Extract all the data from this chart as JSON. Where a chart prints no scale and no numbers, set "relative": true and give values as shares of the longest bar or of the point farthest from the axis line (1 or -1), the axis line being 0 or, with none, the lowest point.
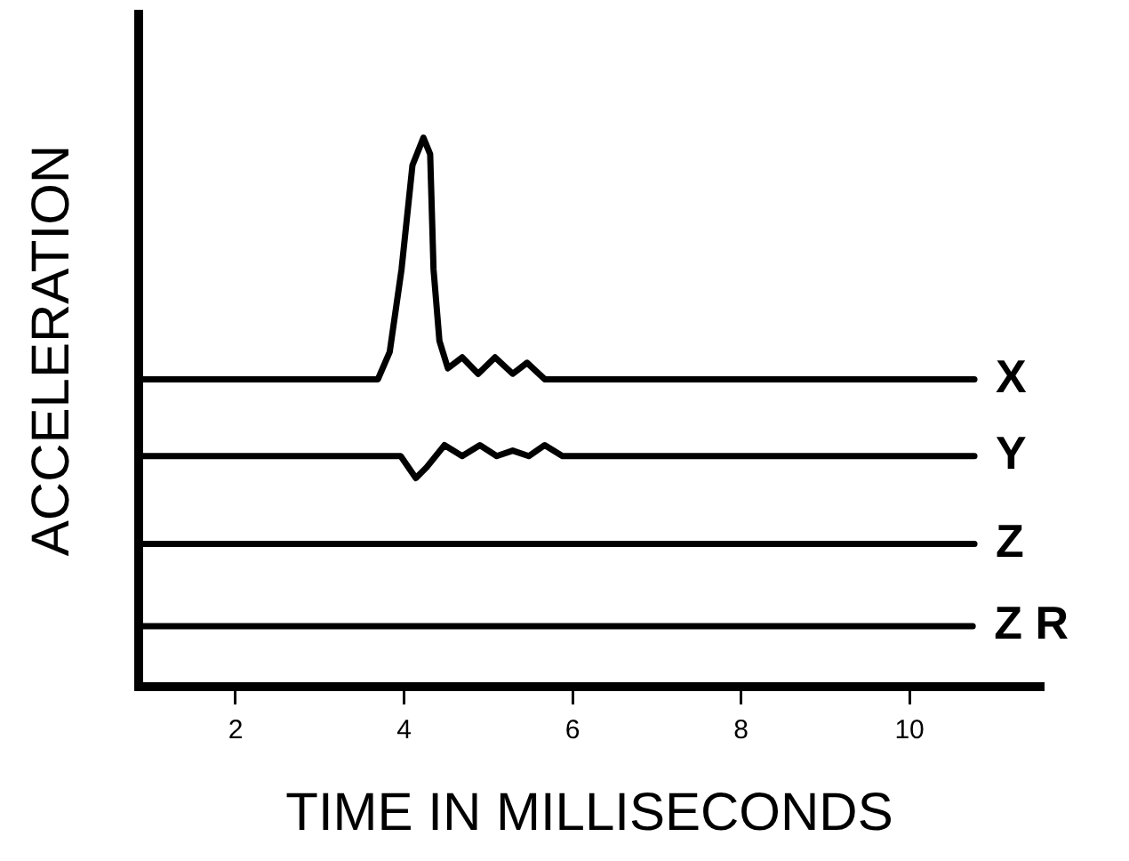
{
  "chart_data": {
    "type": "line",
    "xlabel": "TIME IN MILLISECONDS",
    "ylabel": "ACCELERATION",
    "relative": true,
    "legend": false,
    "marker": "none",
    "grid": false,
    "xlim": [
      0.85,
      11.55
    ],
    "xticks": [
      2,
      4,
      6,
      8,
      10
    ],
    "series": [
      {
        "name": "X",
        "color": "#000000",
        "x": [
          0.87,
          3.69,
          3.83,
          3.97,
          4.1,
          4.23,
          4.31,
          4.35,
          4.42,
          4.52,
          4.69,
          4.88,
          5.08,
          5.29,
          5.46,
          5.67,
          10.77
        ],
        "values": [
          0.56,
          0.56,
          0.61,
          0.76,
          0.95,
          1,
          0.97,
          0.76,
          0.63,
          0.58,
          0.6,
          0.57,
          0.6,
          0.57,
          0.59,
          0.56,
          0.56
        ]
      },
      {
        "name": "Y",
        "color": "#000000",
        "x": [
          0.87,
          3.96,
          4.14,
          4.27,
          4.48,
          4.69,
          4.9,
          5.1,
          5.29,
          5.48,
          5.67,
          5.88,
          10.77
        ],
        "values": [
          0.42,
          0.42,
          0.38,
          0.4,
          0.44,
          0.42,
          0.44,
          0.42,
          0.43,
          0.42,
          0.44,
          0.42,
          0.42
        ]
      },
      {
        "name": "Z",
        "color": "#000000",
        "x": [
          0.87,
          10.77
        ],
        "values": [
          0.26,
          0.26
        ]
      },
      {
        "name": "Z R",
        "color": "#000000",
        "x": [
          0.87,
          10.75
        ],
        "values": [
          0.11,
          0.11
        ]
      }
    ]
  }
}
